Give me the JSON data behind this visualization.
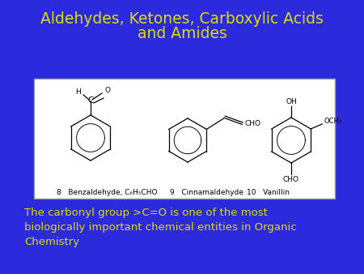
{
  "background_color": "#2b2bdd",
  "title_line1": "Aldehydes, Ketones, Carboxylic Acids",
  "title_line2": "and Amides",
  "title_color": "#dddd00",
  "title_fontsize": 13.5,
  "body_text": "The carbonyl group >C=O is one of the most\nbiologically important chemical entities in Organic\nChemistry",
  "body_text_color": "#dddd00",
  "body_fontsize": 9.5,
  "box_facecolor": "white",
  "box_edgecolor": "#999999",
  "compound8_label": "8   Benzaldehyde, C₆H₅CHO",
  "compound9_label": "9   Cinnamaldehyde",
  "compound10_label": "10   Vanillin",
  "label_color": "black",
  "label_fontsize": 6.5
}
